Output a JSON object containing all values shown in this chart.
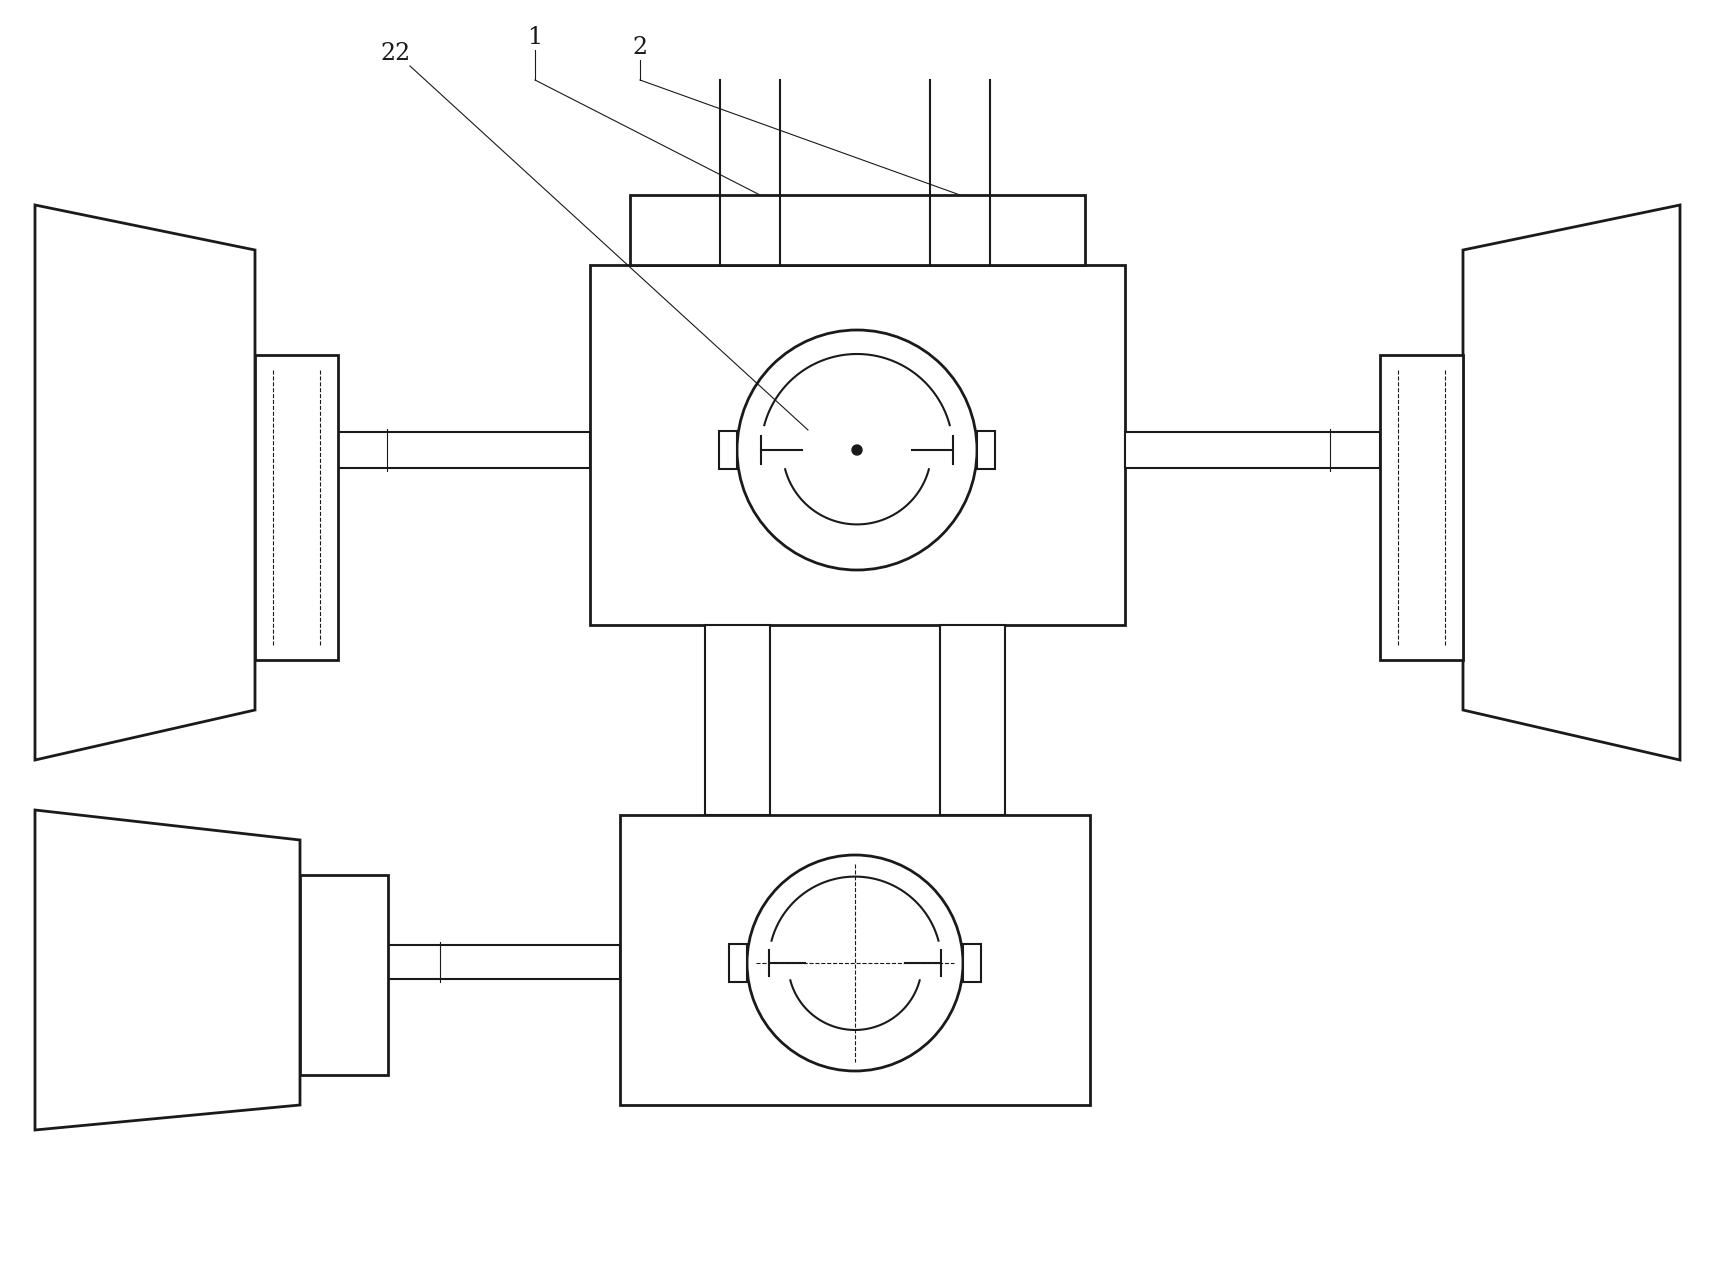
{
  "bg_color": "#ffffff",
  "line_color": "#1a1a1a",
  "lw": 1.5,
  "lw_thin": 0.8,
  "lw_thick": 2.0,
  "fig_width": 17.14,
  "fig_height": 12.85,
  "dpi": 100
}
